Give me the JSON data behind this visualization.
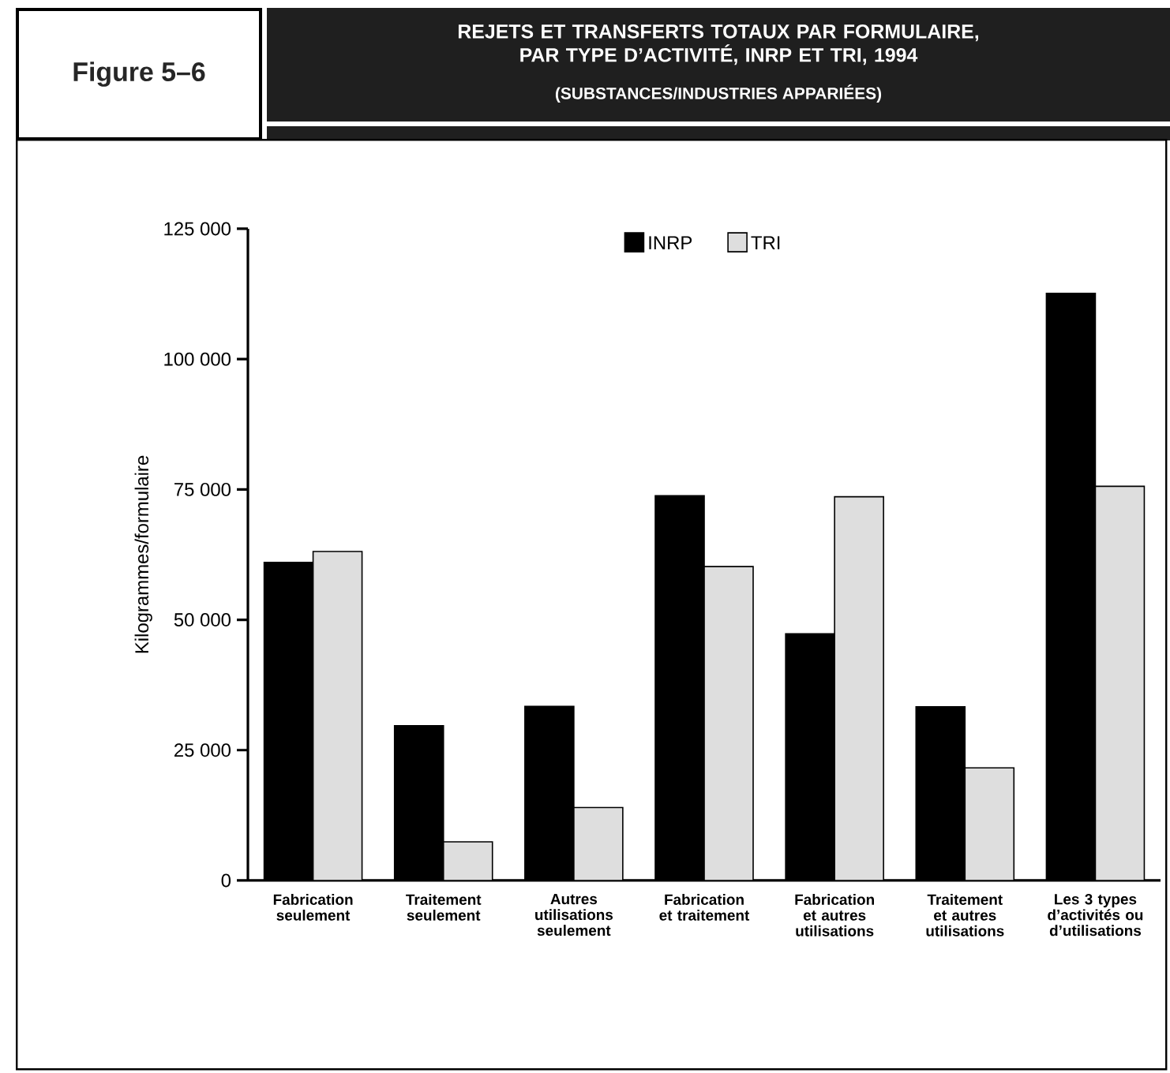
{
  "chart_data": {
    "type": "bar",
    "title": "REJETS ET TRANSFERTS TOTAUX PAR FORMULAIRE, PAR TYPE D’ACTIVITÉ, INRP ET TRI, 1994",
    "subtitle": "(SUBSTANCES/INDUSTRIES APPARIÉES)",
    "annotations": [
      "Figure 5–6"
    ],
    "ylabel": "Kilogrammes/formulaire",
    "categories": [
      "Fabrication seulement",
      "Traitement seulement",
      "Autres utilisations seulement",
      "Fabrication et traitement",
      "Fabrication et autres utilisations",
      "Traitement et autres utilisations",
      "Les 3 types d’activités ou d’utilisations"
    ],
    "series": [
      {
        "name": "INRP",
        "color": "#000000",
        "values": [
          61000,
          29700,
          33400,
          73800,
          47300,
          33300,
          112600
        ]
      },
      {
        "name": "TRI",
        "color": "#dedede",
        "values": [
          63100,
          7400,
          14000,
          60200,
          73600,
          21600,
          75600
        ]
      }
    ],
    "ylim": [
      0,
      125000
    ],
    "yticks": [
      0,
      {
        "value": 25000,
        "label": "25 000"
      },
      {
        "value": 50000,
        "label": "50 000"
      },
      {
        "value": 75000,
        "label": "75 000"
      },
      {
        "value": 100000,
        "label": "100 000"
      },
      {
        "value": 125000,
        "label": "125 000"
      }
    ],
    "legend": "top"
  }
}
